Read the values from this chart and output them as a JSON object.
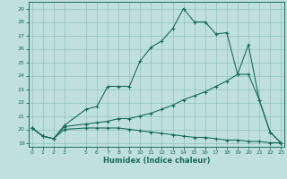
{
  "xlabel": "Humidex (Indice chaleur)",
  "bg_color": "#c0e0e0",
  "grid_color": "#90c0c0",
  "line_color": "#1a6b5a",
  "x_ticks": [
    0,
    1,
    2,
    3,
    5,
    6,
    7,
    8,
    9,
    10,
    11,
    12,
    13,
    14,
    15,
    16,
    17,
    18,
    19,
    20,
    21,
    22,
    23
  ],
  "y_ticks": [
    19,
    20,
    21,
    22,
    23,
    24,
    25,
    26,
    27,
    28,
    29
  ],
  "xlim": [
    -0.3,
    23.3
  ],
  "ylim": [
    18.7,
    29.5
  ],
  "lines": [
    {
      "x": [
        0,
        1,
        2,
        3,
        5,
        6,
        7,
        8,
        9,
        10,
        11,
        12,
        13,
        14,
        15,
        16,
        17,
        18,
        19,
        20,
        21,
        22,
        23
      ],
      "y": [
        20.1,
        19.5,
        19.3,
        20.3,
        21.5,
        21.7,
        23.2,
        23.2,
        23.2,
        25.1,
        26.1,
        26.6,
        27.5,
        29.0,
        28.0,
        28.0,
        27.1,
        27.2,
        24.1,
        26.3,
        22.2,
        19.8,
        19.0
      ]
    },
    {
      "x": [
        0,
        1,
        2,
        3,
        5,
        6,
        7,
        8,
        9,
        10,
        11,
        12,
        13,
        14,
        15,
        16,
        17,
        18,
        19,
        20,
        21,
        22,
        23
      ],
      "y": [
        20.1,
        19.5,
        19.3,
        20.2,
        20.4,
        20.5,
        20.6,
        20.8,
        20.8,
        21.0,
        21.2,
        21.5,
        21.8,
        22.2,
        22.5,
        22.8,
        23.2,
        23.6,
        24.1,
        24.1,
        22.2,
        19.8,
        19.0
      ]
    },
    {
      "x": [
        0,
        1,
        2,
        3,
        5,
        6,
        7,
        8,
        9,
        10,
        11,
        12,
        13,
        14,
        15,
        16,
        17,
        18,
        19,
        20,
        21,
        22,
        23
      ],
      "y": [
        20.1,
        19.5,
        19.3,
        20.0,
        20.1,
        20.1,
        20.1,
        20.1,
        20.0,
        19.9,
        19.8,
        19.7,
        19.6,
        19.5,
        19.4,
        19.4,
        19.3,
        19.2,
        19.2,
        19.1,
        19.1,
        19.0,
        19.0
      ]
    }
  ]
}
